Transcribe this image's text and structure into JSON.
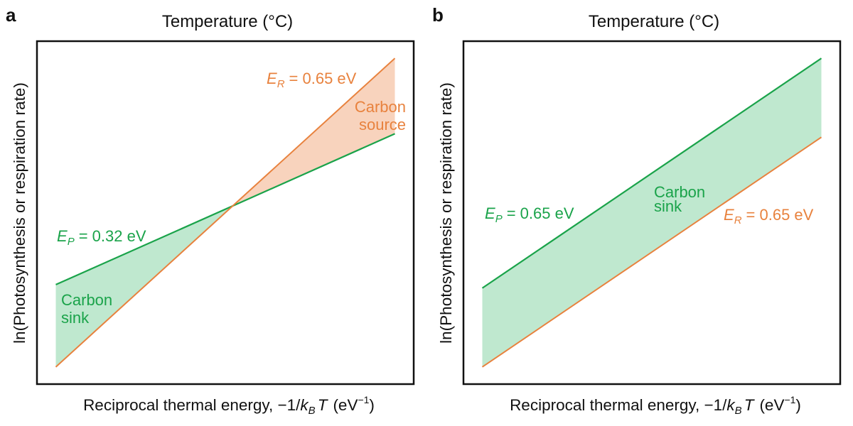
{
  "colors": {
    "photosynthesis": "#1aa34a",
    "respiration": "#e8823e",
    "sink_fill": "#bfe8cf",
    "source_fill": "#f8d3bd",
    "frame": "#111111"
  },
  "chart_data": [
    {
      "type": "line",
      "panel_label": "a",
      "top_axis_label": "Temperature (°C)",
      "xlabel_main": "Reciprocal thermal energy, −1/",
      "xlabel_k": "k",
      "xlabel_sub": "B",
      "xlabel_T": "T",
      "xlabel_unit_open": "(eV",
      "xlabel_unit_sup": "−1",
      "xlabel_unit_close": ")",
      "ylabel": "ln(Photosynthesis or respiration rate)",
      "xlim": [
        0,
        1
      ],
      "ylim": [
        0,
        1
      ],
      "series": [
        {
          "name": "Photosynthesis",
          "symbol": "E",
          "subscript": "P",
          "value_text": "= 0.32 eV",
          "activation_energy_eV": 0.32,
          "x": [
            0.05,
            0.95
          ],
          "y": [
            0.29,
            0.73
          ]
        },
        {
          "name": "Respiration",
          "symbol": "E",
          "subscript": "R",
          "value_text": "= 0.65 eV",
          "activation_energy_eV": 0.65,
          "x": [
            0.05,
            0.95
          ],
          "y": [
            0.05,
            0.95
          ]
        }
      ],
      "regions": [
        {
          "label_line1": "Carbon",
          "label_line2": "sink",
          "between": "photosynthesis above respiration",
          "x_range": [
            0.05,
            0.5
          ]
        },
        {
          "label_line1": "Carbon",
          "label_line2": "source",
          "between": "respiration above photosynthesis",
          "x_range": [
            0.5,
            0.95
          ]
        }
      ]
    },
    {
      "type": "line",
      "panel_label": "b",
      "top_axis_label": "Temperature (°C)",
      "xlabel_main": "Reciprocal thermal energy, −1/",
      "xlabel_k": "k",
      "xlabel_sub": "B",
      "xlabel_T": "T",
      "xlabel_unit_open": "(eV",
      "xlabel_unit_sup": "−1",
      "xlabel_unit_close": ")",
      "ylabel": "ln(Photosynthesis or respiration rate)",
      "xlim": [
        0,
        1
      ],
      "ylim": [
        0,
        1
      ],
      "series": [
        {
          "name": "Photosynthesis",
          "symbol": "E",
          "subscript": "P",
          "value_text": "= 0.65 eV",
          "activation_energy_eV": 0.65,
          "x": [
            0.05,
            0.95
          ],
          "y": [
            0.28,
            0.95
          ]
        },
        {
          "name": "Respiration",
          "symbol": "E",
          "subscript": "R",
          "value_text": "= 0.65 eV",
          "activation_energy_eV": 0.65,
          "x": [
            0.05,
            0.95
          ],
          "y": [
            0.05,
            0.72
          ]
        }
      ],
      "regions": [
        {
          "label_line1": "Carbon",
          "label_line2": "sink",
          "between": "photosynthesis above respiration",
          "x_range": [
            0.05,
            0.95
          ]
        }
      ]
    }
  ]
}
